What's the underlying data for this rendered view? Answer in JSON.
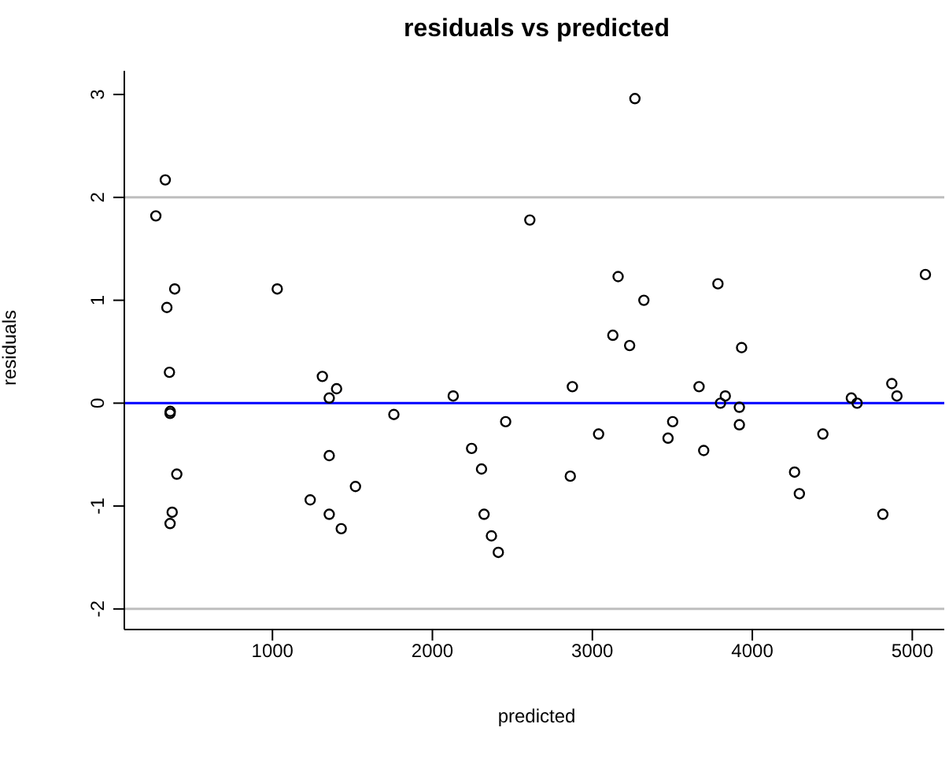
{
  "chart_data": {
    "type": "scatter",
    "title": "residuals vs predicted",
    "xlabel": "predicted",
    "ylabel": "residuals",
    "series": [
      {
        "color": "#000000",
        "x": [
          271,
          330,
          389,
          340,
          1030,
          3266,
          2609,
          3161,
          3785,
          3322,
          5082,
          3128,
          3233,
          3933,
          356,
          360,
          361,
          402,
          373,
          360,
          1312,
          1401,
          1355,
          1759,
          1355,
          1519,
          1236,
          1355,
          1430,
          2130,
          2245,
          2307,
          2458,
          2323,
          2369,
          2412,
          2875,
          2862,
          3039,
          3502,
          3473,
          3667,
          3696,
          3831,
          3801,
          3919,
          3919,
          4264,
          4294,
          4441,
          4619,
          4655,
          4872,
          4904,
          4816
        ],
        "values": [
          1.82,
          2.17,
          1.11,
          0.93,
          1.11,
          2.96,
          1.78,
          1.23,
          1.16,
          1.0,
          1.25,
          0.66,
          0.56,
          0.54,
          0.3,
          -0.1,
          -0.08,
          -0.69,
          -1.06,
          -1.17,
          0.26,
          0.14,
          0.05,
          -0.11,
          -0.51,
          -0.81,
          -0.94,
          -1.08,
          -1.22,
          0.07,
          -0.44,
          -0.64,
          -0.18,
          -1.08,
          -1.29,
          -1.45,
          0.16,
          -0.71,
          -0.3,
          -0.18,
          -0.34,
          0.16,
          -0.46,
          0.07,
          0.0,
          -0.04,
          -0.21,
          -0.67,
          -0.88,
          -0.3,
          0.05,
          0.0,
          0.19,
          0.07,
          -1.08
        ]
      }
    ],
    "xlim": [
      74,
      5200
    ],
    "ylim": [
      -2.2,
      3.23
    ],
    "xticks": [
      1000,
      2000,
      3000,
      4000,
      5000
    ],
    "yticks": [
      -2,
      -1,
      0,
      1,
      2,
      3
    ],
    "ref_lines": [
      {
        "axis": "y",
        "value": 0,
        "color": "#0000ff"
      },
      {
        "axis": "y",
        "value": 2,
        "color": "#bebebe"
      },
      {
        "axis": "y",
        "value": -2,
        "color": "#bebebe"
      }
    ],
    "grid": false,
    "legend": false,
    "marker": "circle"
  }
}
